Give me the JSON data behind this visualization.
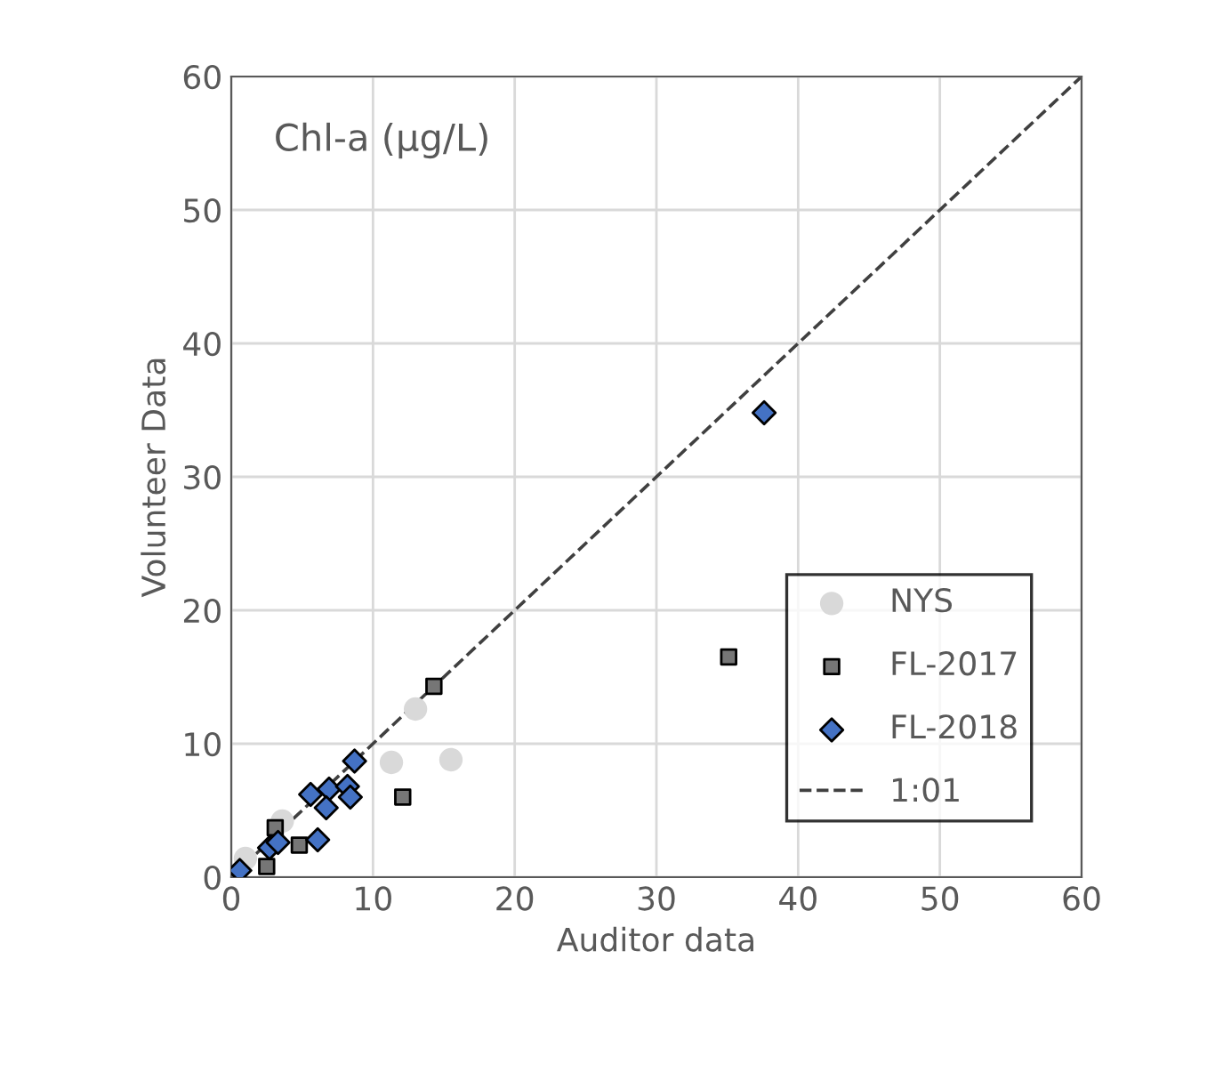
{
  "chart_data": {
    "type": "scatter",
    "title": "Chl-a (µg/L)",
    "xlabel": "Auditor data",
    "ylabel": "Volunteer Data",
    "xlim": [
      0,
      60
    ],
    "ylim": [
      0,
      60
    ],
    "xticks": [
      0,
      10,
      20,
      30,
      40,
      50,
      60
    ],
    "yticks": [
      0,
      10,
      20,
      30,
      40,
      50,
      60
    ],
    "grid": true,
    "legend": "lower right",
    "series": [
      {
        "name": "NYS",
        "color": "#d9d9d9",
        "marker": "circle",
        "x": [
          13.0,
          11.3,
          15.5,
          3.6,
          1.0
        ],
        "values": [
          12.6,
          8.6,
          8.8,
          4.2,
          1.4
        ]
      },
      {
        "name": "FL-2017",
        "color": "#767676",
        "marker": "square",
        "x": [
          14.3,
          12.1,
          3.1,
          4.8,
          2.5,
          35.1
        ],
        "values": [
          14.3,
          6.0,
          3.7,
          2.4,
          0.8,
          16.5
        ]
      },
      {
        "name": "FL-2018",
        "color": "#4472c4",
        "marker": "diamond",
        "x": [
          8.7,
          5.6,
          6.9,
          8.2,
          8.4,
          6.7,
          6.1,
          2.7,
          3.3,
          0.6,
          37.6
        ],
        "values": [
          8.7,
          6.2,
          6.6,
          6.8,
          6.0,
          5.2,
          2.8,
          2.2,
          2.6,
          0.5,
          34.8
        ]
      },
      {
        "name": "1:01",
        "type": "line",
        "color": "#404040",
        "line_style": "dashed",
        "marker": "none",
        "x": [
          0,
          60
        ],
        "values": [
          0,
          60
        ]
      }
    ]
  }
}
